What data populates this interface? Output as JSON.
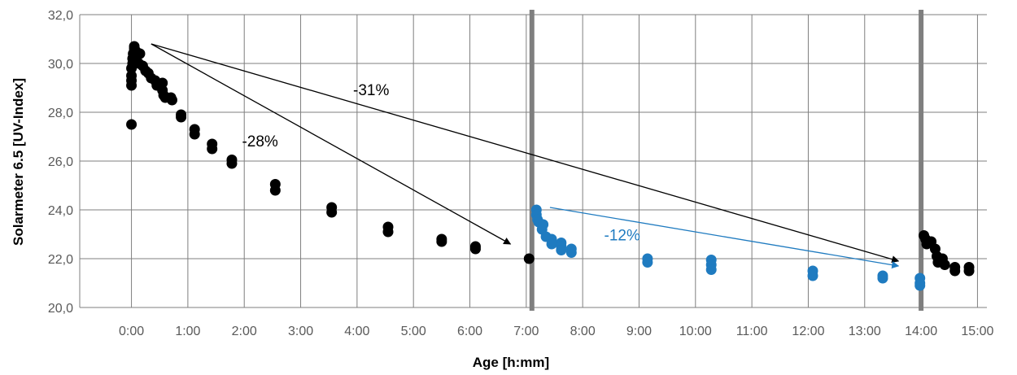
{
  "chart_data": {
    "type": "scatter",
    "xlabel": "Age [h:mm]",
    "ylabel": "Solarmeter 6.5 [UV-Index]",
    "xlim": [
      -0.917,
      15.167
    ],
    "ylim": [
      20,
      32
    ],
    "y_ticks": [
      20,
      22,
      24,
      26,
      28,
      30,
      32
    ],
    "y_tick_labels": [
      "20,0",
      "22,0",
      "24,0",
      "26,0",
      "28,0",
      "30,0",
      "32,0"
    ],
    "x_ticks": [
      0,
      1,
      2,
      3,
      4,
      5,
      6,
      7,
      8,
      9,
      10,
      11,
      12,
      13,
      14,
      15
    ],
    "x_tick_labels": [
      "0:00",
      "1:00",
      "2:00",
      "3:00",
      "4:00",
      "5:00",
      "6:00",
      "7:00",
      "8:00",
      "9:00",
      "10:00",
      "11:00",
      "12:00",
      "13:00",
      "14:00",
      "15:00"
    ],
    "grid": true,
    "colors": {
      "black_series": "#000000",
      "blue_series": "#1f7bc0",
      "divider": "#7f7f7f",
      "grid": "#7f7f7f"
    },
    "vertical_dividers": [
      7.1,
      14.0
    ],
    "series": [
      {
        "color": "black",
        "points": [
          [
            0,
            27.5
          ],
          [
            0,
            29.1
          ],
          [
            0,
            29.3
          ],
          [
            0,
            29.5
          ],
          [
            0,
            29.8
          ],
          [
            0.02,
            30.0
          ],
          [
            0.02,
            30.2
          ],
          [
            0.03,
            30.4
          ],
          [
            0.05,
            30.6
          ],
          [
            0.05,
            30.7
          ],
          [
            0.08,
            30.5
          ],
          [
            0.1,
            30.3
          ],
          [
            0.13,
            30.0
          ],
          [
            0.15,
            30.4
          ],
          [
            0.2,
            29.9
          ],
          [
            0.25,
            29.7
          ],
          [
            0.3,
            29.6
          ],
          [
            0.35,
            29.4
          ],
          [
            0.42,
            29.3
          ],
          [
            0.45,
            29.1
          ],
          [
            0.55,
            29.2
          ],
          [
            0.55,
            28.9
          ],
          [
            0.57,
            28.7
          ],
          [
            0.6,
            28.6
          ],
          [
            0.7,
            28.6
          ],
          [
            0.72,
            28.5
          ],
          [
            0.88,
            27.9
          ],
          [
            0.88,
            27.8
          ],
          [
            1.12,
            27.3
          ],
          [
            1.12,
            27.1
          ],
          [
            1.43,
            26.7
          ],
          [
            1.43,
            26.5
          ],
          [
            1.78,
            26.05
          ],
          [
            1.78,
            25.9
          ],
          [
            2.55,
            25.05
          ],
          [
            2.55,
            24.8
          ],
          [
            3.55,
            24.1
          ],
          [
            3.55,
            23.9
          ],
          [
            4.55,
            23.3
          ],
          [
            4.55,
            23.1
          ],
          [
            5.5,
            22.8
          ],
          [
            5.5,
            22.7
          ],
          [
            6.1,
            22.5
          ],
          [
            6.1,
            22.4
          ],
          [
            7.05,
            22.0
          ],
          [
            14.05,
            22.95
          ],
          [
            14.08,
            22.8
          ],
          [
            14.1,
            22.6
          ],
          [
            14.18,
            22.7
          ],
          [
            14.25,
            22.4
          ],
          [
            14.28,
            22.1
          ],
          [
            14.3,
            21.85
          ],
          [
            14.38,
            22.0
          ],
          [
            14.42,
            21.75
          ],
          [
            14.6,
            21.65
          ],
          [
            14.6,
            21.5
          ],
          [
            14.85,
            21.65
          ],
          [
            14.85,
            21.5
          ]
        ]
      },
      {
        "color": "blue",
        "points": [
          [
            7.18,
            24.0
          ],
          [
            7.18,
            23.8
          ],
          [
            7.2,
            23.6
          ],
          [
            7.22,
            23.5
          ],
          [
            7.28,
            23.2
          ],
          [
            7.3,
            23.4
          ],
          [
            7.35,
            22.9
          ],
          [
            7.45,
            22.8
          ],
          [
            7.45,
            22.6
          ],
          [
            7.62,
            22.65
          ],
          [
            7.62,
            22.5
          ],
          [
            7.62,
            22.35
          ],
          [
            7.8,
            22.4
          ],
          [
            7.8,
            22.25
          ],
          [
            9.15,
            22.0
          ],
          [
            9.15,
            21.85
          ],
          [
            10.28,
            21.95
          ],
          [
            10.28,
            21.75
          ],
          [
            10.28,
            21.55
          ],
          [
            12.08,
            21.5
          ],
          [
            12.08,
            21.3
          ],
          [
            13.32,
            21.3
          ],
          [
            13.32,
            21.2
          ],
          [
            13.98,
            21.2
          ],
          [
            13.98,
            21.0
          ],
          [
            13.98,
            20.9
          ]
        ]
      }
    ],
    "arrows": [
      {
        "from": [
          0.35,
          30.8
        ],
        "to": [
          6.72,
          22.6
        ],
        "color": "black"
      },
      {
        "from": [
          0.35,
          30.8
        ],
        "to": [
          13.6,
          21.9
        ],
        "color": "black"
      },
      {
        "from": [
          7.42,
          24.1
        ],
        "to": [
          13.6,
          21.7
        ],
        "color": "blue"
      }
    ],
    "annotations": [
      {
        "text": "-31%",
        "x": 4.25,
        "y": 28.7,
        "color": "black"
      },
      {
        "text": "-28%",
        "x": 2.28,
        "y": 26.6,
        "color": "black"
      },
      {
        "text": "-12%",
        "x": 8.7,
        "y": 22.75,
        "color": "blue"
      }
    ]
  }
}
